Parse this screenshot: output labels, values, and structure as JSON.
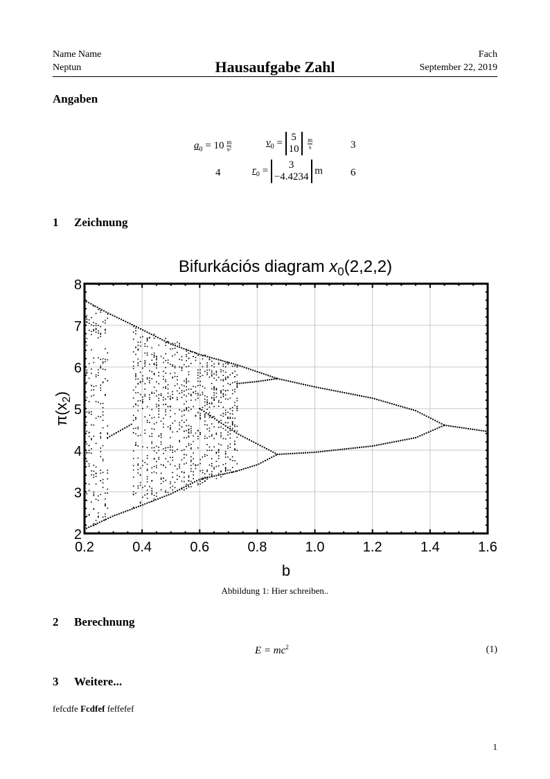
{
  "header": {
    "name": "Name Name",
    "neptun": "Neptun",
    "title": "Hausaufgabe Zahl",
    "subject": "Fach",
    "date": "September 22, 2019"
  },
  "given": {
    "heading": "Angaben",
    "a0_label": "a",
    "a0_sub": "0",
    "a0_value": "= 10",
    "a0_unit_num": "m",
    "a0_unit_den": "s²",
    "v0_label": "v",
    "v0_sub": "0",
    "v0_eq": "=",
    "v0_vec": [
      "5",
      "10"
    ],
    "v0_unit_num": "m",
    "v0_unit_den": "s",
    "cell_3": "3",
    "cell_4": "4",
    "r0_label": "r",
    "r0_sub": "0",
    "r0_eq": "=",
    "r0_vec": [
      "3",
      "−4.4234"
    ],
    "r0_unit": "m",
    "cell_6": "6"
  },
  "sections": [
    {
      "number": "1",
      "title": "Zeichnung"
    },
    {
      "number": "2",
      "title": "Berechnung"
    },
    {
      "number": "3",
      "title": "Weitere..."
    }
  ],
  "figure": {
    "caption": "Abbildung 1: Hier schreiben.."
  },
  "equation": {
    "lhs": "E",
    "rhs": "= mc",
    "exp": "2",
    "number": "(1)"
  },
  "body_text": {
    "part1": "fefcdfe",
    "bold": "Fcdfef",
    "part2": "feffefef"
  },
  "page_number": "1",
  "chart_data": {
    "type": "scatter",
    "title": "Bifurkációs diagram x0(2,2,2)",
    "title_main": "Bifurkációs diagram ",
    "title_var": "x",
    "title_sub": "0",
    "title_args": "(2,2,2)",
    "xlabel": "b",
    "ylabel": "π(x2)",
    "ylabel_main": "π(x",
    "ylabel_sub": "2",
    "ylabel_close": ")",
    "xlim": [
      0.2,
      1.6
    ],
    "ylim": [
      2,
      8
    ],
    "xticks": [
      "0.2",
      "0.4",
      "0.6",
      "0.8",
      "1.0",
      "1.2",
      "1.4",
      "1.6"
    ],
    "yticks": [
      "2",
      "3",
      "4",
      "5",
      "6",
      "7",
      "8"
    ],
    "grid": true,
    "marker_color": "#000000",
    "branches": [
      {
        "points": [
          [
            0.2,
            7.6
          ],
          [
            0.28,
            7.3
          ],
          [
            0.37,
            7.0
          ],
          [
            0.5,
            6.55
          ],
          [
            0.6,
            6.3
          ],
          [
            0.73,
            6.05
          ],
          [
            0.87,
            5.72
          ]
        ]
      },
      {
        "points": [
          [
            0.73,
            5.6
          ],
          [
            0.8,
            5.65
          ],
          [
            0.87,
            5.72
          ]
        ]
      },
      {
        "points": [
          [
            0.87,
            5.72
          ],
          [
            1.0,
            5.52
          ],
          [
            1.2,
            5.25
          ],
          [
            1.35,
            4.95
          ],
          [
            1.45,
            4.6
          ]
        ]
      },
      {
        "points": [
          [
            0.28,
            4.3
          ],
          [
            0.37,
            4.65
          ]
        ]
      },
      {
        "points": [
          [
            0.6,
            5.0
          ],
          [
            0.73,
            4.4
          ],
          [
            0.87,
            3.9
          ]
        ]
      },
      {
        "points": [
          [
            0.73,
            3.5
          ],
          [
            0.8,
            3.65
          ],
          [
            0.87,
            3.9
          ]
        ]
      },
      {
        "points": [
          [
            0.87,
            3.9
          ],
          [
            1.0,
            3.95
          ],
          [
            1.2,
            4.1
          ],
          [
            1.35,
            4.3
          ],
          [
            1.45,
            4.6
          ]
        ]
      },
      {
        "points": [
          [
            1.45,
            4.6
          ],
          [
            1.6,
            4.45
          ]
        ]
      },
      {
        "points": [
          [
            0.2,
            2.1
          ],
          [
            0.3,
            2.42
          ],
          [
            0.37,
            2.6
          ],
          [
            0.5,
            2.95
          ],
          [
            0.6,
            3.3
          ],
          [
            0.73,
            3.5
          ]
        ]
      }
    ],
    "chaotic_bands": [
      {
        "b": [
          0.2,
          0.28
        ],
        "lower": [
          2.1,
          2.3
        ],
        "upper": [
          7.6,
          7.3
        ]
      },
      {
        "b": [
          0.37,
          0.73
        ],
        "lower": [
          2.6,
          3.5
        ],
        "upper": [
          7.0,
          6.05
        ]
      }
    ]
  }
}
